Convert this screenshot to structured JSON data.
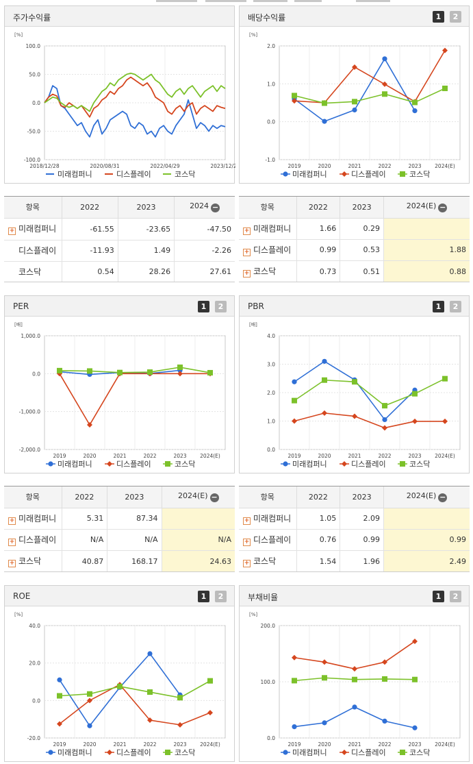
{
  "legend": [
    "미래컴퍼니",
    "디스플레이",
    "코스닥"
  ],
  "colors": {
    "s0": "#2f6fd6",
    "s1": "#d5461e",
    "s2": "#7cc12a"
  },
  "panels": {
    "stock": {
      "title": "주가수익률"
    },
    "dividend": {
      "title": "배당수익률"
    },
    "per": {
      "title": "PER"
    },
    "pbr": {
      "title": "PBR"
    },
    "roe": {
      "title": "ROE"
    },
    "debt": {
      "title": "부채비율"
    }
  },
  "page_buttons": [
    "1",
    "2"
  ],
  "tables": {
    "stock": {
      "head": [
        "항목",
        "2022",
        "2023",
        "2024"
      ],
      "rows": [
        {
          "name": "미래컴퍼니",
          "plus": true,
          "values": [
            "-61.55",
            "-23.65",
            "-47.50"
          ]
        },
        {
          "name": "디스플레이",
          "plus": false,
          "values": [
            "-11.93",
            "1.49",
            "-2.26"
          ]
        },
        {
          "name": "코스닥",
          "plus": false,
          "values": [
            "0.54",
            "28.26",
            "27.61"
          ]
        }
      ]
    },
    "dividend": {
      "head": [
        "항목",
        "2022",
        "2023",
        "2024(E)"
      ],
      "rows": [
        {
          "name": "미래컴퍼니",
          "plus": true,
          "values": [
            "1.66",
            "0.29",
            ""
          ]
        },
        {
          "name": "디스플레이",
          "plus": true,
          "values": [
            "0.99",
            "0.53",
            "1.88"
          ]
        },
        {
          "name": "코스닥",
          "plus": true,
          "values": [
            "0.73",
            "0.51",
            "0.88"
          ]
        }
      ]
    },
    "per": {
      "head": [
        "항목",
        "2022",
        "2023",
        "2024(E)"
      ],
      "rows": [
        {
          "name": "미래컴퍼니",
          "plus": true,
          "values": [
            "5.31",
            "87.34",
            ""
          ]
        },
        {
          "name": "디스플레이",
          "plus": true,
          "values": [
            "N/A",
            "N/A",
            "N/A"
          ]
        },
        {
          "name": "코스닥",
          "plus": true,
          "values": [
            "40.87",
            "168.17",
            "24.63"
          ]
        }
      ]
    },
    "pbr": {
      "head": [
        "항목",
        "2022",
        "2023",
        "2024(E)"
      ],
      "rows": [
        {
          "name": "미래컴퍼니",
          "plus": true,
          "values": [
            "1.05",
            "2.09",
            ""
          ]
        },
        {
          "name": "디스플레이",
          "plus": true,
          "values": [
            "0.76",
            "0.99",
            "0.99"
          ]
        },
        {
          "name": "코스닥",
          "plus": true,
          "values": [
            "1.54",
            "1.96",
            "2.49"
          ]
        }
      ]
    }
  },
  "chart_data": [
    {
      "id": "stock",
      "type": "line",
      "ylabel": "[%]",
      "ylim": [
        -100,
        100
      ],
      "yticks": [
        "100.0",
        "50.0",
        "0.0",
        "-50.0",
        "-100.0"
      ],
      "xticks": [
        "2018/12/28",
        "2020/08/31",
        "2022/04/29",
        "2023/12/28"
      ],
      "series": [
        {
          "name": "미래컴퍼니",
          "values": [
            0,
            10,
            30,
            25,
            -5,
            -10,
            -20,
            -30,
            -40,
            -35,
            -50,
            -60,
            -40,
            -30,
            -55,
            -45,
            -30,
            -25,
            -20,
            -15,
            -20,
            -40,
            -45,
            -35,
            -40,
            -55,
            -50,
            -60,
            -45,
            -40,
            -50,
            -55,
            -40,
            -30,
            -20,
            5,
            -20,
            -45,
            -35,
            -40,
            -50,
            -40,
            -45,
            -40,
            -42
          ]
        },
        {
          "name": "디스플레이",
          "values": [
            0,
            10,
            15,
            12,
            -5,
            -8,
            0,
            -5,
            -10,
            -5,
            -15,
            -25,
            -10,
            -5,
            5,
            10,
            20,
            15,
            25,
            30,
            40,
            45,
            40,
            35,
            30,
            35,
            25,
            10,
            5,
            0,
            -15,
            -20,
            -10,
            -5,
            -15,
            -5,
            0,
            -20,
            -10,
            -5,
            -10,
            -15,
            -5,
            -8,
            -10
          ]
        },
        {
          "name": "코스닥",
          "values": [
            0,
            5,
            10,
            8,
            0,
            -5,
            -8,
            -5,
            -10,
            -5,
            -10,
            -15,
            0,
            10,
            20,
            25,
            35,
            30,
            40,
            45,
            50,
            52,
            50,
            45,
            40,
            45,
            50,
            40,
            35,
            25,
            15,
            10,
            20,
            25,
            15,
            25,
            30,
            20,
            10,
            20,
            25,
            30,
            20,
            30,
            25
          ]
        }
      ]
    },
    {
      "id": "dividend",
      "type": "line",
      "ylabel": "[%]",
      "ylim": [
        -1,
        2
      ],
      "yticks": [
        "2.0",
        "1.0",
        "0.0",
        "-1.0"
      ],
      "categories": [
        "2019",
        "2020",
        "2021",
        "2022",
        "2023",
        "2024(E)"
      ],
      "series": [
        {
          "name": "미래컴퍼니",
          "values": [
            0.6,
            0.01,
            0.31,
            1.66,
            0.29,
            null
          ]
        },
        {
          "name": "디스플레이",
          "values": [
            0.55,
            0.5,
            1.44,
            0.99,
            0.53,
            1.88
          ]
        },
        {
          "name": "코스닥",
          "values": [
            0.69,
            0.49,
            0.53,
            0.73,
            0.51,
            0.88
          ]
        }
      ]
    },
    {
      "id": "per",
      "type": "line",
      "ylabel": "[배]",
      "ylim": [
        -2000,
        1000
      ],
      "yticks": [
        "1,000.0",
        "0.0",
        "-1,000.0",
        "-2,000.0"
      ],
      "categories": [
        "2019",
        "2020",
        "2021",
        "2022",
        "2023",
        "2024(E)"
      ],
      "series": [
        {
          "name": "미래컴퍼니",
          "values": [
            50,
            -20,
            30,
            5.31,
            87.34,
            null
          ]
        },
        {
          "name": "디스플레이",
          "values": [
            0,
            -1350,
            0,
            0,
            0,
            0
          ]
        },
        {
          "name": "코스닥",
          "values": [
            80,
            70,
            30,
            40.87,
            168.17,
            24.63
          ]
        }
      ]
    },
    {
      "id": "pbr",
      "type": "line",
      "ylabel": "[배]",
      "ylim": [
        0,
        4
      ],
      "yticks": [
        "4.0",
        "3.0",
        "2.0",
        "1.0",
        "0.0"
      ],
      "categories": [
        "2019",
        "2020",
        "2021",
        "2022",
        "2023",
        "2024(E)"
      ],
      "series": [
        {
          "name": "미래컴퍼니",
          "values": [
            2.38,
            3.1,
            2.45,
            1.05,
            2.09,
            null
          ]
        },
        {
          "name": "디스플레이",
          "values": [
            1.0,
            1.28,
            1.17,
            0.76,
            0.99,
            0.99
          ]
        },
        {
          "name": "코스닥",
          "values": [
            1.72,
            2.44,
            2.38,
            1.54,
            1.96,
            2.49
          ]
        }
      ]
    },
    {
      "id": "roe",
      "type": "line",
      "ylabel": "[%]",
      "ylim": [
        -20,
        40
      ],
      "yticks": [
        "40.0",
        "20.0",
        "0.0",
        "-20.0"
      ],
      "categories": [
        "2019",
        "2020",
        "2021",
        "2022",
        "2023",
        "2024(E)"
      ],
      "series": [
        {
          "name": "미래컴퍼니",
          "values": [
            11,
            -13.5,
            7,
            25,
            3,
            null
          ]
        },
        {
          "name": "디스플레이",
          "values": [
            -12.5,
            0,
            8.5,
            -10.5,
            -13,
            -6.5
          ]
        },
        {
          "name": "코스닥",
          "values": [
            2.5,
            3.5,
            7.5,
            4.5,
            1.5,
            10.5
          ]
        }
      ]
    },
    {
      "id": "debt",
      "type": "line",
      "ylabel": "[%]",
      "ylim": [
        0,
        200
      ],
      "yticks": [
        "200.0",
        "100.0",
        "0.0"
      ],
      "categories": [
        "2019",
        "2020",
        "2021",
        "2022",
        "2023",
        "2024(E)"
      ],
      "series": [
        {
          "name": "미래컴퍼니",
          "values": [
            20,
            27,
            55,
            30,
            18,
            null
          ]
        },
        {
          "name": "디스플레이",
          "values": [
            143,
            135,
            123,
            135,
            172,
            null
          ]
        },
        {
          "name": "코스닥",
          "values": [
            102,
            107,
            104,
            105,
            104,
            null
          ]
        }
      ]
    }
  ]
}
